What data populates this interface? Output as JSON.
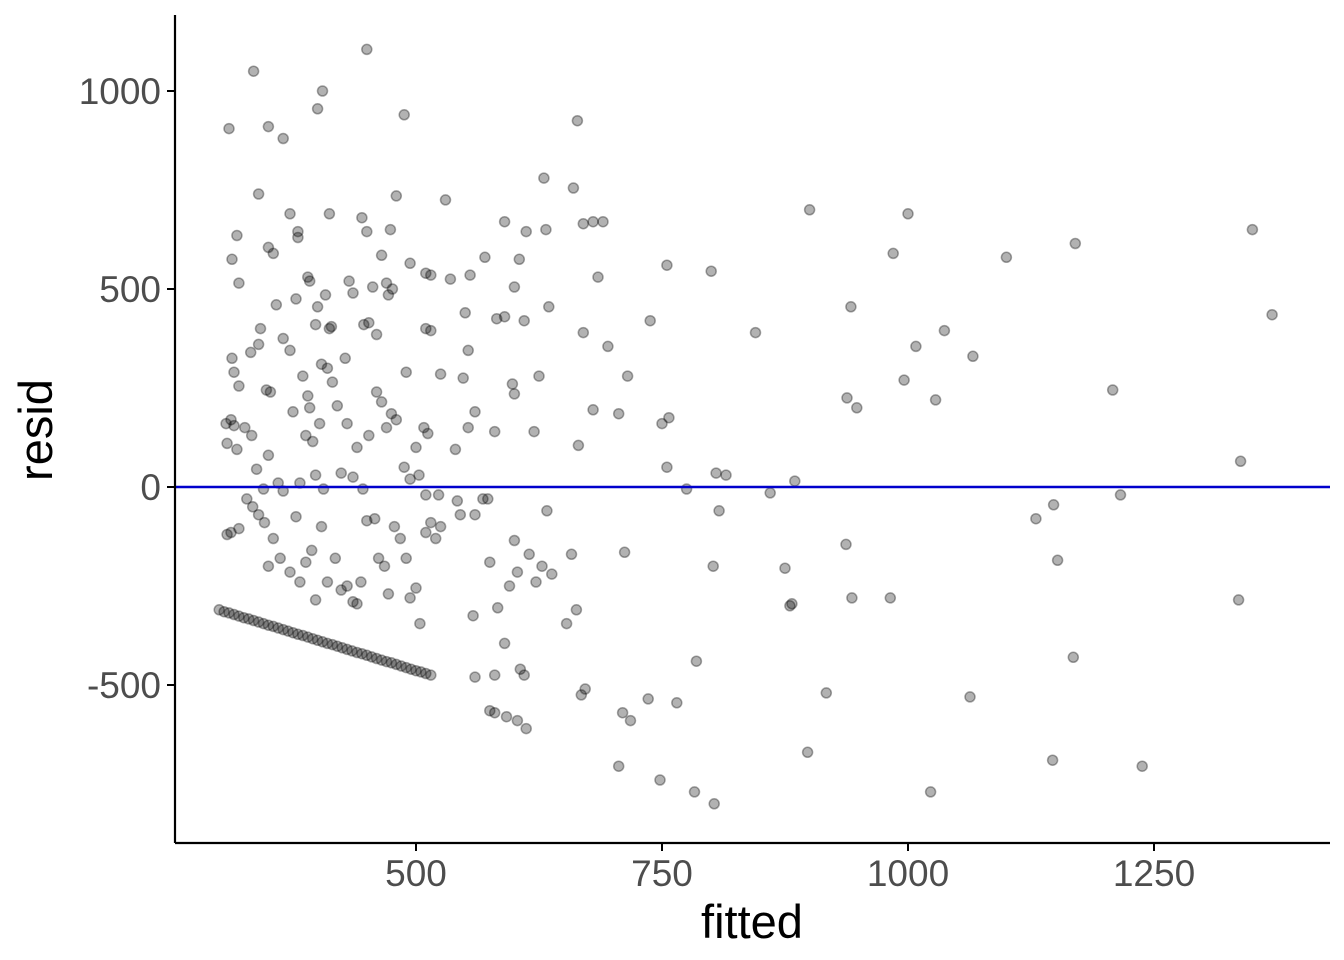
{
  "chart_data": {
    "type": "scatter",
    "title": "",
    "xlabel": "fitted",
    "ylabel": "resid",
    "xlim": [
      300,
      1400
    ],
    "ylim": [
      -900,
      1200
    ],
    "x_ticks": [
      500,
      750,
      1000,
      1250
    ],
    "x_tick_labels": [
      "500",
      "750",
      "1000",
      "1250"
    ],
    "y_ticks": [
      -500,
      0,
      500,
      1000
    ],
    "y_tick_labels": [
      "-500",
      "0",
      "500",
      "1000"
    ],
    "grid": false,
    "reference_line": {
      "y": 0,
      "color": "#0000cc"
    },
    "point_color": "#000000",
    "points": [
      [
        310,
        905
      ],
      [
        335,
        1050
      ],
      [
        350,
        910
      ],
      [
        365,
        880
      ],
      [
        400,
        955
      ],
      [
        405,
        1000
      ],
      [
        450,
        1105
      ],
      [
        488,
        940
      ],
      [
        340,
        740
      ],
      [
        313,
        575
      ],
      [
        320,
        515
      ],
      [
        318,
        635
      ],
      [
        350,
        605
      ],
      [
        355,
        590
      ],
      [
        372,
        690
      ],
      [
        380,
        630
      ],
      [
        380,
        645
      ],
      [
        390,
        530
      ],
      [
        392,
        520
      ],
      [
        412,
        690
      ],
      [
        445,
        680
      ],
      [
        450,
        645
      ],
      [
        465,
        585
      ],
      [
        470,
        515
      ],
      [
        474,
        650
      ],
      [
        480,
        735
      ],
      [
        494,
        565
      ],
      [
        510,
        540
      ],
      [
        515,
        535
      ],
      [
        530,
        725
      ],
      [
        535,
        525
      ],
      [
        555,
        535
      ],
      [
        570,
        580
      ],
      [
        590,
        670
      ],
      [
        600,
        505
      ],
      [
        605,
        575
      ],
      [
        612,
        645
      ],
      [
        630,
        780
      ],
      [
        632,
        650
      ],
      [
        660,
        755
      ],
      [
        664,
        925
      ],
      [
        670,
        665
      ],
      [
        680,
        670
      ],
      [
        685,
        530
      ],
      [
        690,
        670
      ],
      [
        755,
        560
      ],
      [
        800,
        545
      ],
      [
        900,
        700
      ],
      [
        985,
        590
      ],
      [
        1000,
        690
      ],
      [
        1100,
        580
      ],
      [
        1170,
        615
      ],
      [
        1350,
        650
      ],
      [
        1370,
        435
      ],
      [
        313,
        325
      ],
      [
        315,
        290
      ],
      [
        320,
        255
      ],
      [
        332,
        340
      ],
      [
        340,
        360
      ],
      [
        342,
        400
      ],
      [
        348,
        245
      ],
      [
        358,
        460
      ],
      [
        365,
        375
      ],
      [
        372,
        345
      ],
      [
        378,
        475
      ],
      [
        385,
        280
      ],
      [
        392,
        200
      ],
      [
        398,
        410
      ],
      [
        400,
        455
      ],
      [
        404,
        310
      ],
      [
        408,
        485
      ],
      [
        412,
        400
      ],
      [
        414,
        405
      ],
      [
        428,
        325
      ],
      [
        432,
        520
      ],
      [
        436,
        490
      ],
      [
        447,
        410
      ],
      [
        452,
        415
      ],
      [
        456,
        505
      ],
      [
        460,
        385
      ],
      [
        472,
        485
      ],
      [
        476,
        500
      ],
      [
        490,
        290
      ],
      [
        510,
        400
      ],
      [
        515,
        395
      ],
      [
        525,
        285
      ],
      [
        548,
        275
      ],
      [
        550,
        440
      ],
      [
        553,
        345
      ],
      [
        560,
        190
      ],
      [
        582,
        425
      ],
      [
        590,
        430
      ],
      [
        598,
        260
      ],
      [
        600,
        235
      ],
      [
        610,
        420
      ],
      [
        620,
        140
      ],
      [
        625,
        280
      ],
      [
        635,
        455
      ],
      [
        665,
        105
      ],
      [
        670,
        390
      ],
      [
        680,
        195
      ],
      [
        695,
        355
      ],
      [
        706,
        185
      ],
      [
        715,
        280
      ],
      [
        738,
        420
      ],
      [
        750,
        160
      ],
      [
        757,
        175
      ],
      [
        845,
        390
      ],
      [
        938,
        225
      ],
      [
        942,
        455
      ],
      [
        948,
        200
      ],
      [
        996,
        270
      ],
      [
        1008,
        355
      ],
      [
        1028,
        220
      ],
      [
        1037,
        395
      ],
      [
        1066,
        330
      ],
      [
        1208,
        245
      ],
      [
        307,
        160
      ],
      [
        308,
        110
      ],
      [
        312,
        170
      ],
      [
        315,
        155
      ],
      [
        318,
        95
      ],
      [
        326,
        150
      ],
      [
        333,
        130
      ],
      [
        338,
        45
      ],
      [
        345,
        -5
      ],
      [
        350,
        80
      ],
      [
        352,
        240
      ],
      [
        360,
        10
      ],
      [
        365,
        -10
      ],
      [
        375,
        190
      ],
      [
        382,
        10
      ],
      [
        388,
        130
      ],
      [
        390,
        230
      ],
      [
        395,
        115
      ],
      [
        398,
        30
      ],
      [
        402,
        160
      ],
      [
        406,
        -5
      ],
      [
        410,
        300
      ],
      [
        415,
        265
      ],
      [
        420,
        205
      ],
      [
        424,
        35
      ],
      [
        430,
        160
      ],
      [
        436,
        25
      ],
      [
        440,
        100
      ],
      [
        446,
        -5
      ],
      [
        452,
        130
      ],
      [
        460,
        240
      ],
      [
        465,
        215
      ],
      [
        470,
        150
      ],
      [
        475,
        185
      ],
      [
        480,
        170
      ],
      [
        488,
        50
      ],
      [
        494,
        20
      ],
      [
        500,
        100
      ],
      [
        503,
        30
      ],
      [
        508,
        150
      ],
      [
        510,
        -20
      ],
      [
        512,
        135
      ],
      [
        523,
        -20
      ],
      [
        540,
        95
      ],
      [
        542,
        -35
      ],
      [
        553,
        150
      ],
      [
        560,
        -70
      ],
      [
        568,
        -30
      ],
      [
        573,
        -30
      ],
      [
        580,
        140
      ],
      [
        755,
        50
      ],
      [
        775,
        -5
      ],
      [
        805,
        35
      ],
      [
        815,
        30
      ],
      [
        860,
        -15
      ],
      [
        885,
        15
      ],
      [
        1338,
        65
      ],
      [
        1148,
        -45
      ],
      [
        1130,
        -80
      ],
      [
        1216,
        -20
      ],
      [
        308,
        -120
      ],
      [
        312,
        -115
      ],
      [
        320,
        -105
      ],
      [
        328,
        -30
      ],
      [
        334,
        -50
      ],
      [
        340,
        -70
      ],
      [
        346,
        -90
      ],
      [
        350,
        -200
      ],
      [
        355,
        -130
      ],
      [
        362,
        -180
      ],
      [
        372,
        -215
      ],
      [
        378,
        -75
      ],
      [
        382,
        -240
      ],
      [
        388,
        -190
      ],
      [
        394,
        -160
      ],
      [
        398,
        -285
      ],
      [
        404,
        -100
      ],
      [
        410,
        -240
      ],
      [
        418,
        -180
      ],
      [
        424,
        -260
      ],
      [
        430,
        -250
      ],
      [
        436,
        -290
      ],
      [
        440,
        -295
      ],
      [
        444,
        -240
      ],
      [
        450,
        -85
      ],
      [
        458,
        -80
      ],
      [
        462,
        -180
      ],
      [
        468,
        -200
      ],
      [
        472,
        -270
      ],
      [
        478,
        -100
      ],
      [
        484,
        -130
      ],
      [
        490,
        -180
      ],
      [
        494,
        -280
      ],
      [
        500,
        -255
      ],
      [
        504,
        -345
      ],
      [
        510,
        -115
      ],
      [
        515,
        -90
      ],
      [
        520,
        -130
      ],
      [
        525,
        -100
      ],
      [
        545,
        -70
      ],
      [
        558,
        -325
      ],
      [
        575,
        -190
      ],
      [
        580,
        -475
      ],
      [
        583,
        -305
      ],
      [
        590,
        -395
      ],
      [
        595,
        -250
      ],
      [
        600,
        -135
      ],
      [
        603,
        -215
      ],
      [
        606,
        -460
      ],
      [
        610,
        -475
      ],
      [
        615,
        -170
      ],
      [
        622,
        -240
      ],
      [
        628,
        -200
      ],
      [
        633,
        -60
      ],
      [
        638,
        -220
      ],
      [
        653,
        -345
      ],
      [
        658,
        -170
      ],
      [
        663,
        -310
      ],
      [
        668,
        -525
      ],
      [
        672,
        -510
      ],
      [
        712,
        -165
      ],
      [
        785,
        -440
      ],
      [
        802,
        -200
      ],
      [
        808,
        -60
      ],
      [
        875,
        -205
      ],
      [
        880,
        -300
      ],
      [
        882,
        -295
      ],
      [
        917,
        -520
      ],
      [
        937,
        -145
      ],
      [
        943,
        -280
      ],
      [
        982,
        -280
      ],
      [
        1063,
        -530
      ],
      [
        1147,
        -690
      ],
      [
        1152,
        -185
      ],
      [
        1168,
        -430
      ],
      [
        1336,
        -285
      ],
      [
        1238,
        -705
      ],
      [
        898,
        -670
      ],
      [
        612,
        -610
      ],
      [
        718,
        -590
      ],
      [
        710,
        -570
      ],
      [
        706,
        -705
      ],
      [
        748,
        -740
      ],
      [
        736,
        -535
      ],
      [
        765,
        -545
      ],
      [
        783,
        -770
      ],
      [
        803,
        -800
      ],
      [
        1023,
        -770
      ],
      [
        575,
        -565
      ],
      [
        580,
        -570
      ],
      [
        592,
        -580
      ],
      [
        603,
        -590
      ],
      [
        560,
        -480
      ],
      [
        300,
        -310
      ],
      [
        305,
        -315
      ],
      [
        310,
        -318
      ],
      [
        315,
        -322
      ],
      [
        320,
        -326
      ],
      [
        325,
        -330
      ],
      [
        330,
        -333
      ],
      [
        335,
        -337
      ],
      [
        340,
        -341
      ],
      [
        345,
        -345
      ],
      [
        350,
        -349
      ],
      [
        355,
        -352
      ],
      [
        360,
        -356
      ],
      [
        365,
        -360
      ],
      [
        370,
        -364
      ],
      [
        375,
        -368
      ],
      [
        380,
        -372
      ],
      [
        385,
        -375
      ],
      [
        390,
        -379
      ],
      [
        395,
        -383
      ],
      [
        400,
        -387
      ],
      [
        405,
        -391
      ],
      [
        410,
        -395
      ],
      [
        415,
        -398
      ],
      [
        420,
        -402
      ],
      [
        425,
        -406
      ],
      [
        430,
        -410
      ],
      [
        435,
        -414
      ],
      [
        440,
        -418
      ],
      [
        445,
        -421
      ],
      [
        450,
        -425
      ],
      [
        455,
        -429
      ],
      [
        460,
        -433
      ],
      [
        465,
        -437
      ],
      [
        470,
        -441
      ],
      [
        475,
        -444
      ],
      [
        480,
        -448
      ],
      [
        485,
        -452
      ],
      [
        490,
        -456
      ],
      [
        495,
        -460
      ],
      [
        500,
        -464
      ],
      [
        505,
        -467
      ],
      [
        510,
        -471
      ],
      [
        515,
        -475
      ]
    ]
  }
}
